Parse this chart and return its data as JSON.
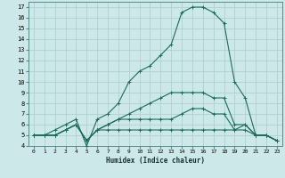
{
  "xlabel": "Humidex (Indice chaleur)",
  "background_color": "#cce8e8",
  "grid_color": "#aacccc",
  "line_color": "#1a6b5a",
  "xlim": [
    -0.5,
    23.5
  ],
  "ylim": [
    4,
    17.5
  ],
  "xticks": [
    0,
    1,
    2,
    3,
    4,
    5,
    6,
    7,
    8,
    9,
    10,
    11,
    12,
    13,
    14,
    15,
    16,
    17,
    18,
    19,
    20,
    21,
    22,
    23
  ],
  "yticks": [
    4,
    5,
    6,
    7,
    8,
    9,
    10,
    11,
    12,
    13,
    14,
    15,
    16,
    17
  ],
  "lines": [
    {
      "x": [
        0,
        1,
        2,
        3,
        4,
        5,
        6,
        7,
        8,
        9,
        10,
        11,
        12,
        13,
        14,
        15,
        16,
        17,
        18,
        19,
        20,
        21,
        22,
        23
      ],
      "y": [
        5,
        5,
        5.5,
        6,
        6.5,
        4,
        6.5,
        7,
        8,
        10,
        11,
        11.5,
        12.5,
        13.5,
        16.5,
        17,
        17,
        16.5,
        15.5,
        10,
        8.5,
        5,
        5,
        4.5
      ]
    },
    {
      "x": [
        0,
        1,
        2,
        3,
        4,
        5,
        6,
        7,
        8,
        9,
        10,
        11,
        12,
        13,
        14,
        15,
        16,
        17,
        18,
        19,
        20,
        21,
        22,
        23
      ],
      "y": [
        5,
        5,
        5,
        5.5,
        6,
        4.5,
        5.5,
        5.5,
        5.5,
        5.5,
        5.5,
        5.5,
        5.5,
        5.5,
        5.5,
        5.5,
        5.5,
        5.5,
        5.5,
        5.5,
        5.5,
        5,
        5,
        4.5
      ]
    },
    {
      "x": [
        0,
        1,
        2,
        3,
        4,
        5,
        6,
        7,
        8,
        9,
        10,
        11,
        12,
        13,
        14,
        15,
        16,
        17,
        18,
        19,
        20,
        21,
        22,
        23
      ],
      "y": [
        5,
        5,
        5,
        5.5,
        6,
        4.5,
        5.5,
        6,
        6.5,
        7,
        7.5,
        8,
        8.5,
        9,
        9,
        9,
        9,
        8.5,
        8.5,
        6,
        6,
        5,
        5,
        4.5
      ]
    },
    {
      "x": [
        0,
        1,
        2,
        3,
        4,
        5,
        6,
        7,
        8,
        9,
        10,
        11,
        12,
        13,
        14,
        15,
        16,
        17,
        18,
        19,
        20,
        21,
        22,
        23
      ],
      "y": [
        5,
        5,
        5,
        5.5,
        6,
        4.5,
        5.5,
        6,
        6.5,
        6.5,
        6.5,
        6.5,
        6.5,
        6.5,
        7,
        7.5,
        7.5,
        7,
        7,
        5.5,
        6,
        5,
        5,
        4.5
      ]
    }
  ]
}
